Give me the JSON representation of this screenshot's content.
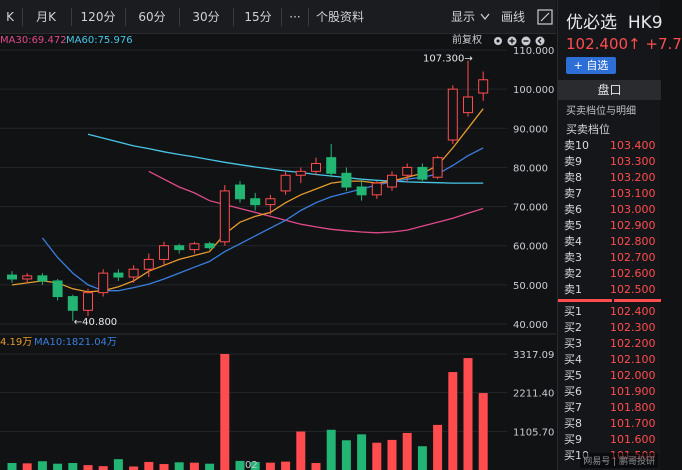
{
  "toolbar": {
    "items": [
      "K",
      "月K",
      "120分",
      "60分",
      "30分",
      "15分",
      "···",
      "个股资料"
    ],
    "display_label": "显示",
    "draw_label": "画线"
  },
  "indicators": {
    "ma30": "MA30:69.472",
    "ma60": "MA60:75.976",
    "adjust": "前复权",
    "vol_ma5": "4.19万",
    "vol_ma10": "MA10:1821.04万"
  },
  "price_axis": [
    "110.000",
    "100.000",
    "90.000",
    "80.000",
    "70.000",
    "60.000",
    "50.000",
    "40.000"
  ],
  "volume_axis": [
    "3317.09",
    "2211.40",
    "1105.70"
  ],
  "date_label": "02",
  "annotations": {
    "high": "107.300→",
    "low": "←40.800"
  },
  "stock": {
    "name": "优必选",
    "code": "HK9",
    "price": "102.400↑",
    "change": "+7.7",
    "add_watch": "+ 自选"
  },
  "panel": {
    "tab": "盘口",
    "subtitle": "买卖档位与明细",
    "book_title": "买卖档位",
    "asks": [
      {
        "label": "卖10",
        "price": "103.400"
      },
      {
        "label": "卖9",
        "price": "103.300"
      },
      {
        "label": "卖8",
        "price": "103.200"
      },
      {
        "label": "卖7",
        "price": "103.100"
      },
      {
        "label": "卖6",
        "price": "103.000"
      },
      {
        "label": "卖5",
        "price": "102.900"
      },
      {
        "label": "卖4",
        "price": "102.800"
      },
      {
        "label": "卖3",
        "price": "102.700"
      },
      {
        "label": "卖2",
        "price": "102.600"
      },
      {
        "label": "卖1",
        "price": "102.500"
      }
    ],
    "bids": [
      {
        "label": "买1",
        "price": "102.400"
      },
      {
        "label": "买2",
        "price": "102.300"
      },
      {
        "label": "买3",
        "price": "102.200"
      },
      {
        "label": "买4",
        "price": "102.100"
      },
      {
        "label": "买5",
        "price": "102.000"
      },
      {
        "label": "买6",
        "price": "101.900"
      },
      {
        "label": "买7",
        "price": "101.800"
      },
      {
        "label": "买8",
        "price": "101.700"
      },
      {
        "label": "买9",
        "price": "101.600"
      },
      {
        "label": "买10",
        "price": "101.500"
      }
    ]
  },
  "watermark": "网易号 | 鹏哥投研",
  "colors": {
    "up": "#ff4d4f",
    "down": "#22b573",
    "ma5": "#e69b2e",
    "ma10": "#3a7fe0",
    "ma30": "#e04a8a",
    "ma60": "#48c6e6"
  },
  "chart_data": {
    "type": "candlestick",
    "candles": [
      {
        "o": 52.5,
        "h": 53.5,
        "l": 50.5,
        "c": 51.5
      },
      {
        "o": 51.5,
        "h": 53.0,
        "l": 50.5,
        "c": 52.3
      },
      {
        "o": 52.3,
        "h": 53.0,
        "l": 50.0,
        "c": 51.0
      },
      {
        "o": 51.0,
        "h": 51.5,
        "l": 46.0,
        "c": 47.0
      },
      {
        "o": 47.0,
        "h": 47.5,
        "l": 40.8,
        "c": 43.5
      },
      {
        "o": 43.5,
        "h": 49.0,
        "l": 42.0,
        "c": 48.0
      },
      {
        "o": 48.0,
        "h": 54.0,
        "l": 47.0,
        "c": 53.0
      },
      {
        "o": 53.0,
        "h": 54.0,
        "l": 51.0,
        "c": 52.0
      },
      {
        "o": 52.0,
        "h": 55.0,
        "l": 50.5,
        "c": 54.0
      },
      {
        "o": 54.0,
        "h": 58.0,
        "l": 52.0,
        "c": 56.5
      },
      {
        "o": 56.5,
        "h": 61.0,
        "l": 55.0,
        "c": 60.0
      },
      {
        "o": 60.0,
        "h": 60.5,
        "l": 58.0,
        "c": 59.0
      },
      {
        "o": 59.0,
        "h": 61.0,
        "l": 58.0,
        "c": 60.5
      },
      {
        "o": 60.5,
        "h": 61.0,
        "l": 59.0,
        "c": 59.5
      },
      {
        "o": 61.0,
        "h": 75.5,
        "l": 60.0,
        "c": 74.0
      },
      {
        "o": 75.5,
        "h": 76.5,
        "l": 71.0,
        "c": 72.0
      },
      {
        "o": 72.0,
        "h": 73.5,
        "l": 69.0,
        "c": 70.5
      },
      {
        "o": 70.5,
        "h": 73.0,
        "l": 68.0,
        "c": 72.0
      },
      {
        "o": 74.0,
        "h": 79.0,
        "l": 73.0,
        "c": 78.0
      },
      {
        "o": 78.0,
        "h": 80.0,
        "l": 76.0,
        "c": 79.0
      },
      {
        "o": 79.0,
        "h": 82.5,
        "l": 78.0,
        "c": 81.0
      },
      {
        "o": 82.5,
        "h": 86.0,
        "l": 77.5,
        "c": 78.5
      },
      {
        "o": 78.5,
        "h": 80.0,
        "l": 74.0,
        "c": 75.0
      },
      {
        "o": 75.0,
        "h": 77.0,
        "l": 71.5,
        "c": 73.0
      },
      {
        "o": 73.0,
        "h": 76.5,
        "l": 72.0,
        "c": 76.0
      },
      {
        "o": 75.0,
        "h": 79.0,
        "l": 74.0,
        "c": 78.0
      },
      {
        "o": 78.0,
        "h": 81.0,
        "l": 76.5,
        "c": 80.0
      },
      {
        "o": 80.0,
        "h": 81.0,
        "l": 76.5,
        "c": 77.0
      },
      {
        "o": 77.5,
        "h": 83.0,
        "l": 77.0,
        "c": 82.5
      },
      {
        "o": 87.0,
        "h": 101.0,
        "l": 86.0,
        "c": 100.0
      },
      {
        "o": 94.0,
        "h": 107.3,
        "l": 93.0,
        "c": 98.0
      },
      {
        "o": 99.0,
        "h": 104.5,
        "l": 97.0,
        "c": 102.4
      }
    ],
    "volumes": [
      200,
      190,
      250,
      180,
      200,
      140,
      110,
      310,
      100,
      230,
      170,
      220,
      210,
      180,
      3317,
      260,
      230,
      210,
      240,
      1100,
      200,
      1150,
      850,
      1020,
      780,
      860,
      1060,
      680,
      1290,
      2800,
      3200,
      2200
    ],
    "ma5": [
      50.0,
      50.5,
      51.0,
      50.5,
      49.0,
      48.2,
      48.5,
      49.5,
      51.0,
      53.5,
      55.0,
      56.5,
      57.5,
      58.5,
      63.0,
      66.0,
      67.5,
      68.5,
      71.0,
      73.0,
      74.5,
      76.0,
      76.5,
      76.5,
      76.0,
      76.5,
      77.5,
      78.5,
      80.5,
      85.0,
      90.0,
      95.0
    ],
    "ma10": [
      null,
      null,
      62.0,
      57.0,
      53.0,
      50.0,
      48.5,
      48.5,
      49.3,
      50.2,
      51.5,
      53.0,
      54.5,
      56.0,
      58.5,
      60.5,
      62.5,
      64.5,
      66.5,
      69.0,
      71.0,
      72.5,
      73.5,
      74.5,
      75.5,
      76.3,
      77.0,
      77.5,
      78.3,
      80.5,
      83.0,
      85.0
    ],
    "ma30": [
      null,
      null,
      null,
      null,
      null,
      null,
      null,
      null,
      null,
      79.0,
      77.0,
      75.0,
      73.5,
      71.5,
      70.5,
      69.5,
      68.5,
      67.5,
      66.5,
      65.5,
      64.8,
      64.2,
      63.8,
      63.5,
      63.3,
      63.5,
      64.0,
      65.0,
      66.0,
      67.0,
      68.3,
      69.5
    ],
    "ma60": [
      null,
      null,
      null,
      null,
      null,
      88.5,
      87.5,
      86.5,
      85.5,
      84.8,
      84.0,
      83.3,
      82.7,
      82.0,
      81.3,
      80.7,
      80.1,
      79.6,
      79.1,
      78.7,
      78.2,
      77.8,
      77.4,
      77.0,
      76.7,
      76.5,
      76.3,
      76.2,
      76.1,
      76.0,
      76.0,
      76.0
    ],
    "ylim": [
      40,
      110
    ],
    "vol_ylim": [
      0,
      3317.09
    ]
  }
}
